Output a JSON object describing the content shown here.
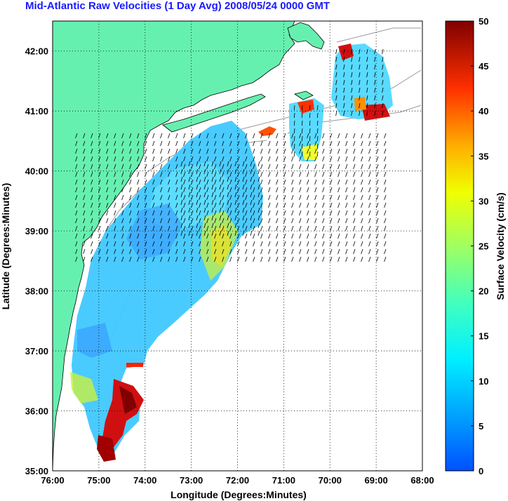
{
  "title": "Mid-Atlantic Raw Velocities (1 Day Avg) 2008/05/24 0000 GMT",
  "map": {
    "xlabel": "Longitude (Degrees:Minutes)",
    "ylabel": "Latitude (Degrees:Minutes)",
    "x_ticks": [
      "76:00",
      "75:00",
      "74:00",
      "73:00",
      "72:00",
      "71:00",
      "70:00",
      "69:00",
      "68:00"
    ],
    "y_ticks": [
      "35:00",
      "36:00",
      "37:00",
      "38:00",
      "39:00",
      "40:00",
      "41:00",
      "42:00"
    ],
    "lon_range": [
      -76,
      -68
    ],
    "lat_range": [
      35,
      42.5
    ],
    "land_color": "#66f0b0",
    "grid": "dotted"
  },
  "colorbar": {
    "label": "Surface Velocity (cm/s)",
    "ticks": [
      "0",
      "5",
      "10",
      "15",
      "20",
      "25",
      "30",
      "35",
      "40",
      "45",
      "50"
    ],
    "range": [
      0,
      50
    ],
    "colormap": "jet"
  }
}
